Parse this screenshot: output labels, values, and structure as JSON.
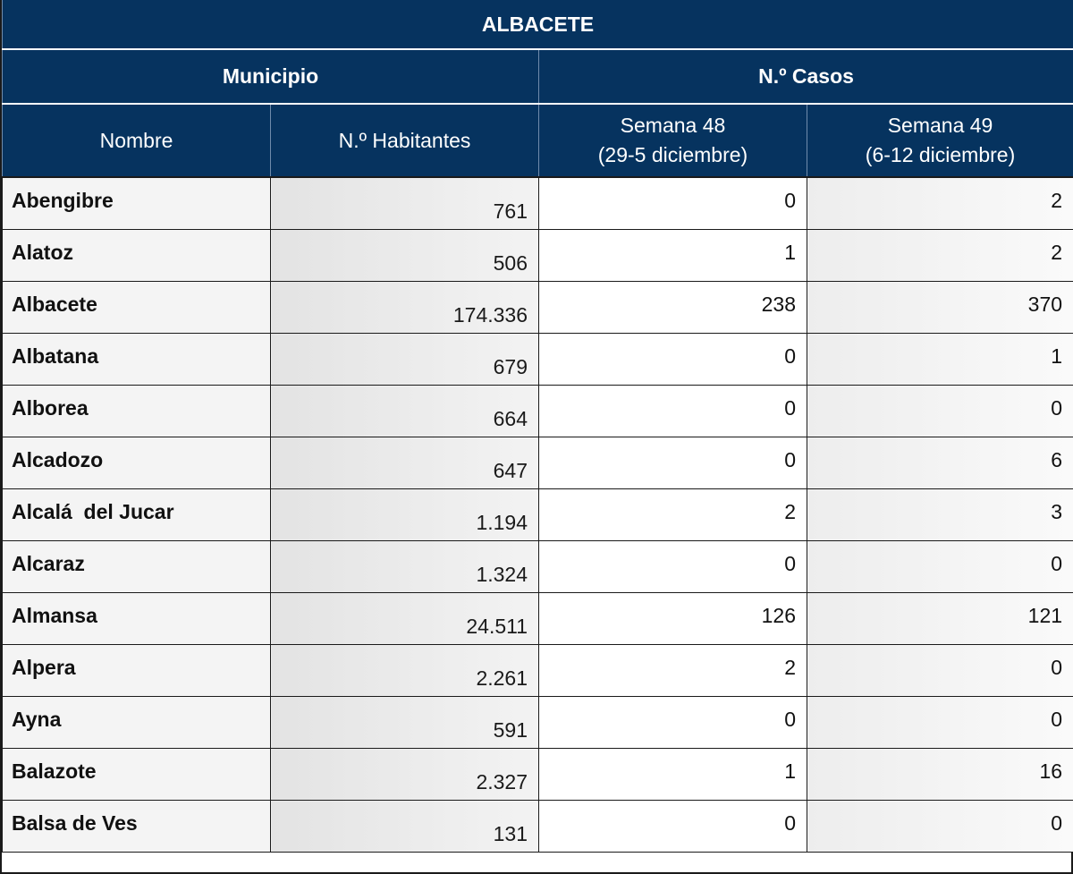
{
  "table": {
    "title": "ALBACETE",
    "group_municipio": "Municipio",
    "group_casos": "N.º Casos",
    "col_nombre": "Nombre",
    "col_habitantes": "N.º Habitantes",
    "col_semana48": {
      "line1": "Semana 48",
      "line2": "(29-5 diciembre)"
    },
    "col_semana49": {
      "line1": "Semana 49",
      "line2": "(6-12 diciembre)"
    },
    "rows": [
      {
        "nombre": "Abengibre",
        "habitantes": "761",
        "semana48": "0",
        "semana49": "2"
      },
      {
        "nombre": "Alatoz",
        "habitantes": "506",
        "semana48": "1",
        "semana49": "2"
      },
      {
        "nombre": "Albacete",
        "habitantes": "174.336",
        "semana48": "238",
        "semana49": "370"
      },
      {
        "nombre": "Albatana",
        "habitantes": "679",
        "semana48": "0",
        "semana49": "1"
      },
      {
        "nombre": "Alborea",
        "habitantes": "664",
        "semana48": "0",
        "semana49": "0"
      },
      {
        "nombre": "Alcadozo",
        "habitantes": "647",
        "semana48": "0",
        "semana49": "6"
      },
      {
        "nombre": "Alcalá  del Jucar",
        "habitantes": "1.194",
        "semana48": "2",
        "semana49": "3"
      },
      {
        "nombre": "Alcaraz",
        "habitantes": "1.324",
        "semana48": "0",
        "semana49": "0"
      },
      {
        "nombre": "Almansa",
        "habitantes": "24.511",
        "semana48": "126",
        "semana49": "121"
      },
      {
        "nombre": "Alpera",
        "habitantes": "2.261",
        "semana48": "2",
        "semana49": "0"
      },
      {
        "nombre": "Ayna",
        "habitantes": "591",
        "semana48": "0",
        "semana49": "0"
      },
      {
        "nombre": "Balazote",
        "habitantes": "2.327",
        "semana48": "1",
        "semana49": "16"
      },
      {
        "nombre": "Balsa de Ves",
        "habitantes": "131",
        "semana48": "0",
        "semana49": "0"
      }
    ]
  },
  "colors": {
    "header_bg": "#06335f",
    "header_text": "#ffffff",
    "grid_line": "#1a1a1a"
  }
}
